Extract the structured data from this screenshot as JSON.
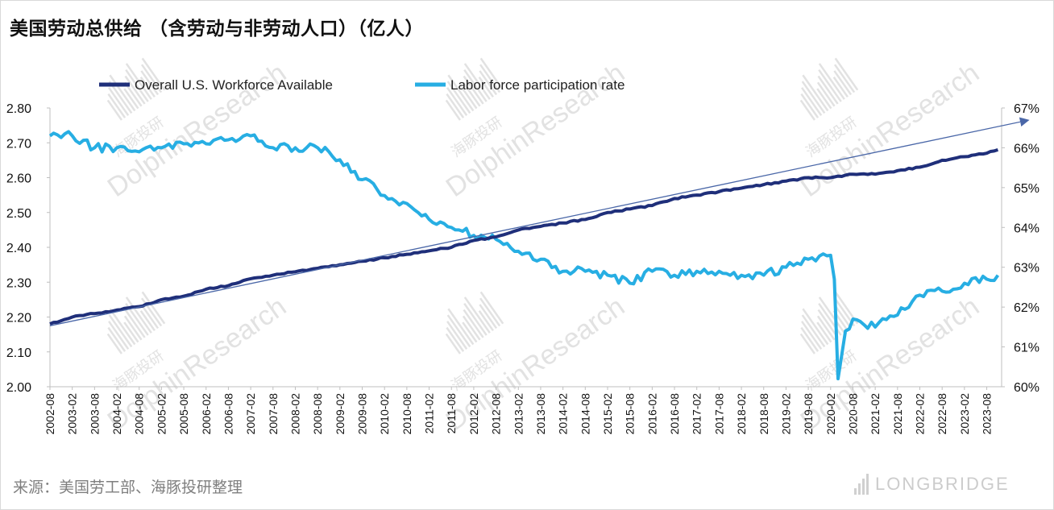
{
  "title": "美国劳动总供给 （含劳动与非劳动人口）（亿人）",
  "source": "来源：美国劳工部、海豚投研整理",
  "brand": "LONGBRIDGE",
  "watermark": "DolphinResearch",
  "watermark_cn": "海豚投研",
  "chart_data": {
    "type": "line",
    "title": "美国劳动总供给 （含劳动与非劳动人口）（亿人）",
    "xlabel": "",
    "ylabel": "",
    "x": [
      "2002-08",
      "2003-02",
      "2003-08",
      "2004-02",
      "2004-08",
      "2005-02",
      "2005-08",
      "2006-02",
      "2006-08",
      "2007-02",
      "2007-08",
      "2008-02",
      "2008-08",
      "2009-02",
      "2009-08",
      "2010-02",
      "2010-08",
      "2011-02",
      "2011-08",
      "2012-02",
      "2012-08",
      "2013-02",
      "2013-08",
      "2014-02",
      "2014-08",
      "2015-02",
      "2015-08",
      "2016-02",
      "2016-08",
      "2017-02",
      "2017-08",
      "2018-02",
      "2018-08",
      "2019-02",
      "2019-08",
      "2020-02",
      "2020-08",
      "2021-02",
      "2021-08",
      "2022-02",
      "2022-08",
      "2023-02",
      "2023-08"
    ],
    "x_extra_points": [
      {
        "x": "2020-03",
        "rate": 62.7
      },
      {
        "x": "2020-04",
        "rate": 60.2
      },
      {
        "x": "2020-05",
        "rate": 60.8
      },
      {
        "x": "2020-06",
        "rate": 61.4
      },
      {
        "x": "2023-11",
        "workforce": 2.68,
        "rate": 62.8
      }
    ],
    "series": [
      {
        "name": "Overall U.S. Workforce Available",
        "axis": "left",
        "color": "#1f2f7a",
        "values": [
          2.18,
          2.2,
          2.21,
          2.22,
          2.23,
          2.25,
          2.26,
          2.28,
          2.29,
          2.31,
          2.32,
          2.33,
          2.34,
          2.35,
          2.36,
          2.37,
          2.38,
          2.39,
          2.4,
          2.42,
          2.43,
          2.45,
          2.46,
          2.47,
          2.48,
          2.5,
          2.51,
          2.52,
          2.54,
          2.55,
          2.56,
          2.57,
          2.58,
          2.59,
          2.6,
          2.6,
          2.61,
          2.61,
          2.62,
          2.63,
          2.65,
          2.66,
          2.67
        ]
      },
      {
        "name": "Labor force participation rate",
        "axis": "right",
        "color": "#27aee3",
        "values": [
          66.3,
          66.3,
          66.0,
          66.0,
          65.9,
          66.0,
          66.1,
          66.1,
          66.2,
          66.3,
          66.0,
          66.0,
          66.0,
          65.7,
          65.2,
          64.8,
          64.6,
          64.2,
          64.0,
          63.8,
          63.7,
          63.4,
          63.2,
          62.9,
          62.9,
          62.8,
          62.6,
          62.9,
          62.8,
          62.9,
          62.9,
          62.8,
          62.8,
          63.0,
          63.2,
          63.3,
          61.7,
          61.5,
          61.8,
          62.3,
          62.4,
          62.6,
          62.7
        ]
      }
    ],
    "ylim_left": [
      2.0,
      2.8
    ],
    "ylim_right": [
      60,
      67
    ],
    "y_ticks_left": [
      "2.00",
      "2.10",
      "2.20",
      "2.30",
      "2.40",
      "2.50",
      "2.60",
      "2.70",
      "2.80"
    ],
    "y_ticks_right": [
      "60%",
      "61%",
      "62%",
      "63%",
      "64%",
      "65%",
      "66%",
      "67%"
    ],
    "trend_line": {
      "from": {
        "x": "2002-08",
        "value": 2.175
      },
      "to": {
        "x": "2023-11",
        "value": 2.765
      },
      "axis": "left",
      "color": "#4a67a8"
    },
    "grid": false,
    "legend_position": "top"
  },
  "colors": {
    "workforce": "#1f2f7a",
    "participation": "#27aee3",
    "trend": "#4a67a8",
    "axis": "#bfbfbf",
    "tick_text": "#111111",
    "watermark": "#e2e2e2"
  }
}
